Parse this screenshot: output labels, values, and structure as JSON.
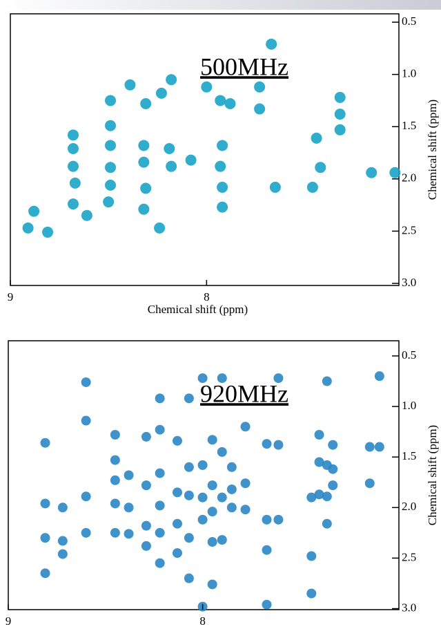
{
  "chart_data": [
    {
      "type": "scatter",
      "annotation": "500MHz",
      "xlabel": "Chemical shift (ppm)",
      "ylabel": "Chemical shift (ppm)",
      "color": "#1aa3c8",
      "xlim": [
        9,
        7.02
      ],
      "ylim": [
        3.02,
        0.42
      ],
      "xticks": [
        9,
        8
      ],
      "yticks": [
        0.5,
        {
          "value": 1,
          "label": "1.0"
        },
        1.5,
        {
          "value": 2,
          "label": "2.0"
        },
        2.5,
        {
          "value": 3,
          "label": "3.0"
        }
      ],
      "x": [
        7.67,
        8.18,
        8.23,
        8.31,
        8.39,
        8.0,
        7.93,
        7.88,
        7.73,
        7.73,
        8.49,
        8.49,
        8.49,
        8.49,
        8.49,
        8.5,
        8.32,
        8.32,
        8.18,
        8.19,
        8.08,
        7.93,
        7.92,
        7.92,
        7.92,
        8.31,
        8.32,
        8.24,
        8.68,
        8.68,
        8.68,
        8.67,
        8.68,
        8.61,
        8.91,
        8.81,
        8.88,
        7.65,
        7.44,
        7.42,
        7.46,
        7.32,
        7.32,
        7.32,
        7.16,
        7.04
      ],
      "values": [
        0.71,
        1.05,
        1.18,
        1.28,
        1.1,
        1.12,
        1.25,
        1.28,
        1.12,
        1.33,
        1.25,
        1.49,
        1.68,
        1.89,
        2.06,
        2.22,
        1.68,
        1.84,
        1.88,
        1.71,
        1.82,
        1.88,
        1.68,
        2.08,
        2.27,
        2.09,
        2.29,
        2.47,
        1.58,
        1.71,
        1.88,
        2.04,
        2.24,
        2.35,
        2.47,
        2.51,
        2.31,
        2.08,
        1.61,
        1.89,
        2.08,
        1.22,
        1.38,
        1.53,
        1.94,
        1.94
      ]
    },
    {
      "type": "scatter",
      "annotation": "920MHz",
      "xlabel": "Chemical shift (ppm)",
      "ylabel": "Chemical shift (ppm)",
      "color": "#2a86c4",
      "xlim": [
        9,
        6.99
      ],
      "ylim": [
        3.01,
        0.35
      ],
      "xticks": [
        9,
        8
      ],
      "yticks": [
        0.5,
        {
          "value": 1,
          "label": "1.0"
        },
        1.5,
        {
          "value": 2,
          "label": "2.0"
        },
        2.5,
        {
          "value": 3,
          "label": "3.0"
        }
      ],
      "x": [
        8.81,
        8.81,
        8.81,
        8.81,
        8.72,
        8.72,
        8.72,
        8.6,
        8.6,
        8.6,
        8.6,
        8.45,
        8.45,
        8.45,
        8.45,
        8.45,
        8.38,
        8.38,
        8.38,
        8.29,
        8.29,
        8.29,
        8.29,
        8.22,
        8.22,
        8.22,
        8.22,
        8.22,
        8.22,
        8.13,
        8.13,
        8.13,
        8.13,
        8.07,
        8.07,
        8.07,
        8.07,
        8.07,
        8.0,
        8.0,
        8.0,
        8.0,
        8.0,
        7.95,
        7.95,
        7.95,
        7.95,
        7.95,
        7.9,
        7.9,
        7.9,
        7.9,
        7.85,
        7.85,
        7.85,
        7.78,
        7.78,
        7.78,
        7.67,
        7.67,
        7.67,
        7.67,
        7.61,
        7.61,
        7.61,
        7.44,
        7.44,
        7.44,
        7.4,
        7.4,
        7.4,
        7.36,
        7.36,
        7.36,
        7.36,
        7.33,
        7.33,
        7.33,
        7.14,
        7.14,
        7.09,
        7.09
      ],
      "values": [
        1.36,
        1.96,
        2.3,
        2.65,
        2.0,
        2.33,
        2.46,
        0.76,
        1.14,
        1.89,
        2.25,
        1.28,
        1.53,
        1.73,
        1.96,
        2.25,
        1.68,
        2.0,
        2.26,
        1.3,
        1.78,
        2.18,
        2.38,
        0.92,
        1.23,
        1.66,
        1.98,
        2.25,
        2.55,
        1.34,
        1.85,
        2.16,
        2.45,
        0.92,
        1.6,
        1.88,
        2.3,
        2.7,
        0.72,
        1.58,
        1.9,
        2.12,
        2.98,
        1.33,
        1.78,
        2.04,
        2.34,
        2.76,
        0.72,
        1.45,
        1.9,
        2.32,
        1.6,
        1.82,
        2.0,
        1.2,
        1.76,
        2.02,
        1.37,
        2.12,
        2.42,
        2.96,
        0.72,
        1.38,
        2.12,
        1.9,
        2.48,
        2.85,
        1.28,
        1.55,
        1.87,
        0.75,
        1.58,
        1.89,
        2.16,
        1.38,
        1.62,
        1.78,
        1.4,
        1.76,
        0.7,
        1.4
      ]
    }
  ]
}
